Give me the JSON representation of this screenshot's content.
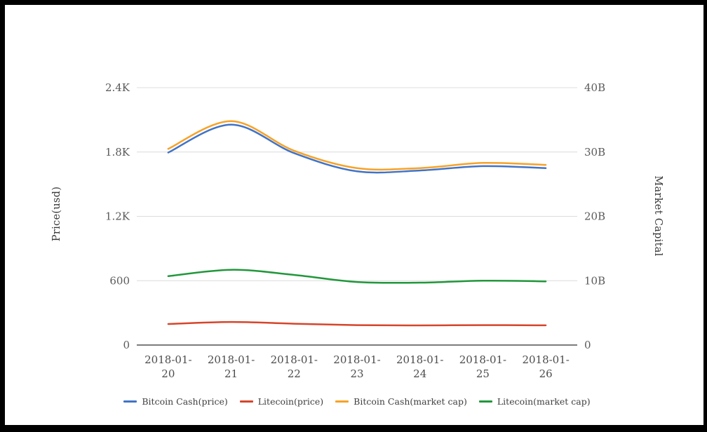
{
  "chart_data": {
    "type": "line",
    "title": "",
    "x": [
      "2018-01-20",
      "2018-01-21",
      "2018-01-22",
      "2018-01-23",
      "2018-01-24",
      "2018-01-25",
      "2018-01-26"
    ],
    "series": [
      {
        "name": "Bitcoin Cash(price)",
        "axis": "left",
        "color": "#4173C6",
        "values": [
          1795,
          2055,
          1790,
          1620,
          1628,
          1668,
          1650
        ]
      },
      {
        "name": "Litecoin(price)",
        "axis": "left",
        "color": "#D6452B",
        "values": [
          196,
          215,
          199,
          186,
          183,
          186,
          184
        ]
      },
      {
        "name": "Bitcoin Cash(market cap)",
        "axis": "right",
        "color": "#F7A227",
        "values": [
          30.5,
          34.8,
          30.2,
          27.5,
          27.5,
          28.3,
          28.0
        ]
      },
      {
        "name": "Litecoin(market cap)",
        "axis": "right",
        "color": "#21973B",
        "values": [
          10.7,
          11.7,
          10.9,
          9.8,
          9.7,
          10.0,
          9.9
        ]
      }
    ],
    "left_axis": {
      "title": "Price(usd)",
      "max": 2400,
      "min": 0,
      "tick_values": [
        0,
        600,
        1200,
        1800,
        2400
      ],
      "tick_labels": [
        "0",
        "600",
        "1.2K",
        "1.8K",
        "2.4K"
      ]
    },
    "right_axis": {
      "title": "Market Capital",
      "max": 40,
      "min": 0,
      "tick_values": [
        0,
        10,
        20,
        30,
        40
      ],
      "tick_labels": [
        "0",
        "10B",
        "20B",
        "30B",
        "40B"
      ],
      "unit": "billions"
    },
    "legend_position": "bottom",
    "grid": true,
    "colors": {
      "grid_line": "#dcdcdc",
      "baseline": "#2e2e2e",
      "tick_text": "#5a5a5a",
      "legend_text": "#3f3f3f",
      "frame": "#000000",
      "background": "#ffffff"
    }
  }
}
